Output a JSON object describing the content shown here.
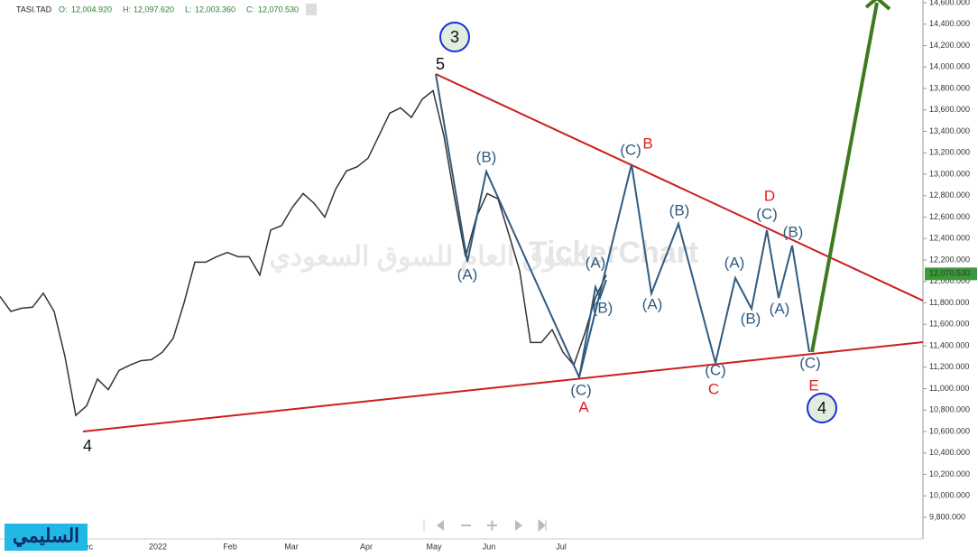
{
  "header": {
    "symbol": "TASI.TAD",
    "ohlc": [
      {
        "label": "O:",
        "value": "12,004.920"
      },
      {
        "label": "H:",
        "value": "12,097.620"
      },
      {
        "label": "L:",
        "value": "12,003.360"
      },
      {
        "label": "C:",
        "value": "12,070.530"
      }
    ]
  },
  "watermark": "TickerChart",
  "watermark_ar": "السوق العام للسوق السعودي",
  "logo": "السليمي",
  "circles": [
    "3",
    "4"
  ],
  "annotations": [
    "5",
    "4",
    "(A)",
    "(B)",
    "(C)",
    "A",
    "(A)",
    "(B)",
    "(C)",
    "B",
    "(A)",
    "(B)",
    "(C)",
    "C",
    "(A)",
    "(B)",
    "D",
    "(C)",
    "(A)",
    "(B)",
    "(C)",
    "E"
  ],
  "chart_data": {
    "type": "line",
    "series": [
      {
        "name": "TASI.TAD",
        "color": "#333333",
        "values": [
          11860,
          11720,
          11750,
          11760,
          11890,
          11720,
          11300,
          10750,
          10840,
          11090,
          10990,
          11170,
          11220,
          11260,
          11270,
          11340,
          11470,
          11800,
          12180,
          12180,
          12230,
          12270,
          12230,
          12230,
          12060,
          12480,
          12520,
          12690,
          12820,
          12730,
          12600,
          12860,
          13030,
          13070,
          13150,
          13360,
          13570,
          13620,
          13530,
          13700,
          13780,
          13360,
          12770,
          12230,
          12600,
          12820,
          12770,
          12440,
          12100,
          11430,
          11430,
          11550,
          11340,
          11220,
          11510,
          11850,
          12060
        ]
      }
    ],
    "x_labels": [
      "Dec",
      "2022",
      "Feb",
      "Mar",
      "Apr",
      "May",
      "Jun",
      "Jul"
    ],
    "ylim": [
      9800,
      14600
    ],
    "yticks": [
      {
        "value": 9800,
        "label": "9,800.000"
      },
      {
        "value": 10000,
        "label": "10,000.000"
      },
      {
        "value": 10200,
        "label": "10,200.000"
      },
      {
        "value": 10400,
        "label": "10,400.000"
      },
      {
        "value": 10600,
        "label": "10,600.000"
      },
      {
        "value": 10800,
        "label": "10,800.000"
      },
      {
        "value": 11000,
        "label": "11,000.000"
      },
      {
        "value": 11200,
        "label": "11,200.000"
      },
      {
        "value": 11400,
        "label": "11,400.000"
      },
      {
        "value": 11600,
        "label": "11,600.000"
      },
      {
        "value": 11800,
        "label": "11,800.000"
      },
      {
        "value": 12000,
        "label": "12,000.000"
      },
      {
        "value": 12200,
        "label": "12,200.000"
      },
      {
        "value": 12400,
        "label": "12,400.000"
      },
      {
        "value": 12600,
        "label": "12,600.000"
      },
      {
        "value": 12800,
        "label": "12,800.000"
      },
      {
        "value": 13000,
        "label": "13,000.000"
      },
      {
        "value": 13200,
        "label": "13,200.000"
      },
      {
        "value": 13400,
        "label": "13,400.000"
      },
      {
        "value": 13600,
        "label": "13,600.000"
      },
      {
        "value": 13800,
        "label": "13,800.000"
      },
      {
        "value": 14000,
        "label": "14,000.000"
      },
      {
        "value": 14200,
        "label": "14,200.000"
      },
      {
        "value": 14400,
        "label": "14,400.000"
      },
      {
        "value": 14600,
        "label": "14,600.000"
      }
    ],
    "last_price": {
      "value": 12070.53,
      "label": "12,070.530"
    }
  }
}
